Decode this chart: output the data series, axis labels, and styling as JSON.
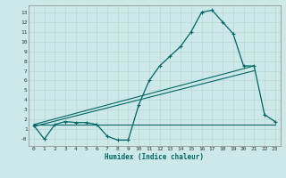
{
  "xlabel": "Humidex (Indice chaleur)",
  "background_color": "#cce8e8",
  "grid_color": "#c0d8d8",
  "line_color": "#006666",
  "xlim": [
    -0.5,
    23.5
  ],
  "ylim": [
    -0.7,
    13.7
  ],
  "xticks": [
    0,
    1,
    2,
    3,
    4,
    5,
    6,
    7,
    8,
    9,
    10,
    11,
    12,
    13,
    14,
    15,
    16,
    17,
    18,
    19,
    20,
    21,
    22,
    23
  ],
  "yticks": [
    0,
    1,
    2,
    3,
    4,
    5,
    6,
    7,
    8,
    9,
    10,
    11,
    12,
    13
  ],
  "ytick_labels": [
    "-0",
    "1",
    "2",
    "3",
    "4",
    "5",
    "6",
    "7",
    "8",
    "9",
    "10",
    "11",
    "12",
    "13"
  ],
  "curve1_x": [
    0,
    1,
    2,
    3,
    4,
    5,
    6,
    7,
    8,
    9,
    10,
    11,
    12,
    13,
    14,
    15,
    16,
    17,
    18,
    19,
    20,
    21,
    22,
    23
  ],
  "curve1_y": [
    1.4,
    0.0,
    1.5,
    1.8,
    1.7,
    1.7,
    1.5,
    0.3,
    -0.1,
    -0.1,
    3.5,
    6.0,
    7.5,
    8.5,
    9.5,
    11.0,
    13.0,
    13.2,
    12.0,
    10.8,
    7.5,
    7.5,
    2.5,
    1.8
  ],
  "curve2_x": [
    0,
    23
  ],
  "curve2_y": [
    1.5,
    1.5
  ],
  "curve3_x": [
    0,
    21
  ],
  "curve3_y": [
    1.5,
    7.5
  ],
  "curve4_x": [
    0,
    21
  ],
  "curve4_y": [
    1.3,
    7.0
  ]
}
